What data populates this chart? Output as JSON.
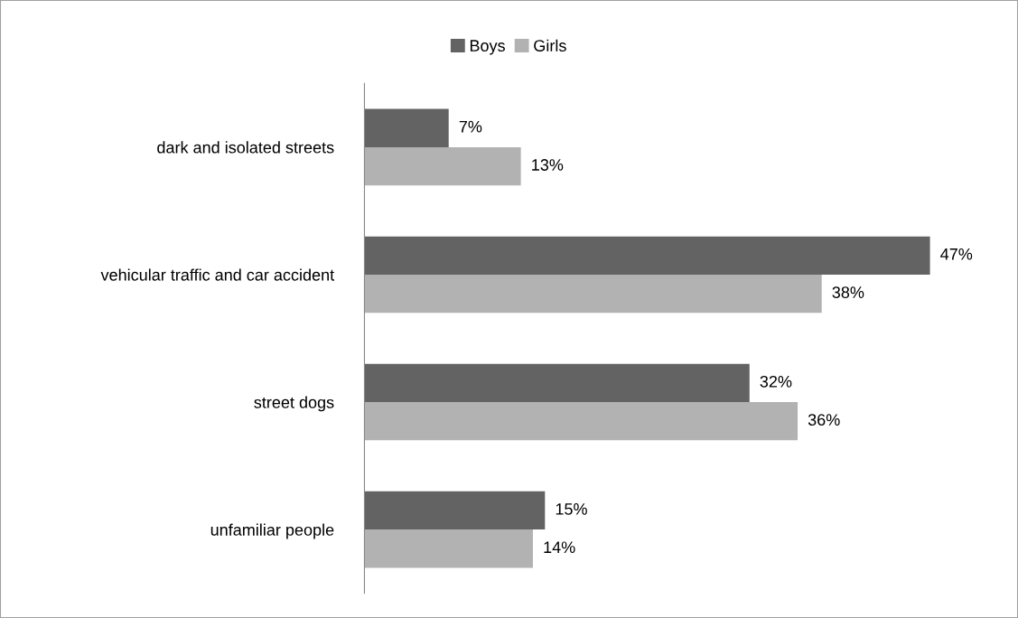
{
  "chart_data": {
    "type": "bar",
    "orientation": "horizontal",
    "categories": [
      "dark and isolated streets",
      "vehicular traffic and car accident",
      "street dogs",
      "unfamiliar people"
    ],
    "series": [
      {
        "name": "Boys",
        "color": "#636363",
        "values": [
          7,
          47,
          32,
          15
        ],
        "value_labels": [
          "7%",
          "47%",
          "32%",
          "15%"
        ]
      },
      {
        "name": "Girls",
        "color": "#b2b2b2",
        "values": [
          13,
          38,
          36,
          14
        ],
        "value_labels": [
          "13%",
          "38%",
          "36%",
          "14%"
        ]
      }
    ],
    "legend": "top",
    "grid": false,
    "tick_labels": "y"
  }
}
